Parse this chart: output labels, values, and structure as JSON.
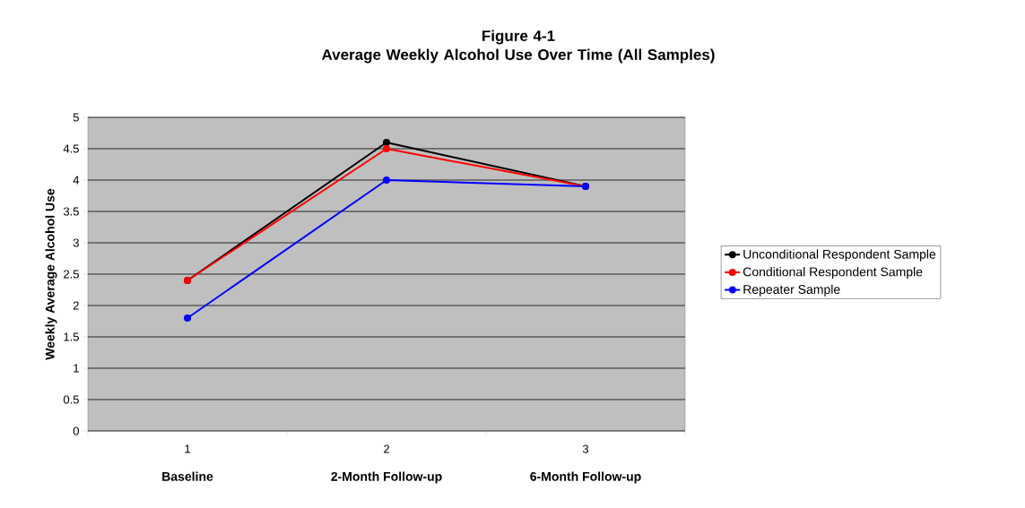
{
  "chart_data": {
    "type": "line",
    "title": "**Figure 4-1**",
    "subtitle": "**Average Weekly Alcohol Use Over Time (All Samples)**",
    "ylabel": "Weekly Average Alcohol Use",
    "categories": [
      "1",
      "2",
      "3"
    ],
    "annotations": [
      "Baseline",
      "2-Month Follow-up",
      "6-Month Follow-up"
    ],
    "series": [
      {
        "name": "Unconditional Respondent Sample",
        "color": "#000000",
        "values": [
          2.4,
          4.6,
          3.9
        ]
      },
      {
        "name": "Conditional Respondent Sample",
        "color": "#ff0000",
        "values": [
          2.4,
          4.5,
          3.9
        ]
      },
      {
        "name": "Repeater Sample",
        "color": "#0000ff",
        "values": [
          1.8,
          4.0,
          3.9
        ]
      }
    ],
    "ylim": [
      0,
      5
    ],
    "yticks": [
      0,
      0.5,
      1,
      1.5,
      2,
      2.5,
      3,
      3.5,
      4,
      4.5,
      5
    ],
    "grid": "y",
    "legend": "right",
    "marker": "circle",
    "line_style": "solid"
  }
}
